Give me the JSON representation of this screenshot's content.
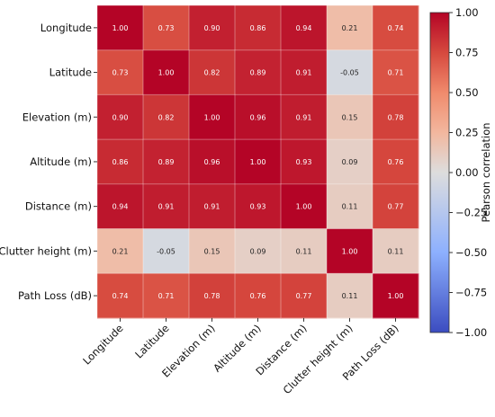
{
  "chart_data": {
    "type": "heatmap",
    "title": "",
    "row_labels": [
      "Longitude",
      "Latitude",
      "Elevation (m)",
      "Altitude (m)",
      "Distance (m)",
      "Clutter height (m)",
      "Path Loss (dB)"
    ],
    "col_labels": [
      "Longitude",
      "Latitude",
      "Elevation (m)",
      "Altitude (m)",
      "Distance (m)",
      "Clutter height (m)",
      "Path Loss (dB)"
    ],
    "values": [
      [
        1.0,
        0.73,
        0.9,
        0.86,
        0.94,
        0.21,
        0.74
      ],
      [
        0.73,
        1.0,
        0.82,
        0.89,
        0.91,
        -0.05,
        0.71
      ],
      [
        0.9,
        0.82,
        1.0,
        0.96,
        0.91,
        0.15,
        0.78
      ],
      [
        0.86,
        0.89,
        0.96,
        1.0,
        0.93,
        0.09,
        0.76
      ],
      [
        0.94,
        0.91,
        0.91,
        0.93,
        1.0,
        0.11,
        0.77
      ],
      [
        0.21,
        -0.05,
        0.15,
        0.09,
        0.11,
        1.0,
        0.11
      ],
      [
        0.74,
        0.71,
        0.78,
        0.76,
        0.77,
        0.11,
        1.0
      ]
    ],
    "value_labels": [
      [
        "1.00",
        "0.73",
        "0.90",
        "0.86",
        "0.94",
        "0.21",
        "0.74"
      ],
      [
        "0.73",
        "1.00",
        "0.82",
        "0.89",
        "0.91",
        "-0.05",
        "0.71"
      ],
      [
        "0.90",
        "0.82",
        "1.00",
        "0.96",
        "0.91",
        "0.15",
        "0.78"
      ],
      [
        "0.86",
        "0.89",
        "0.96",
        "1.00",
        "0.93",
        "0.09",
        "0.76"
      ],
      [
        "0.94",
        "0.91",
        "0.91",
        "0.93",
        "1.00",
        "0.11",
        "0.77"
      ],
      [
        "0.21",
        "-0.05",
        "0.15",
        "0.09",
        "0.11",
        "1.00",
        "0.11"
      ],
      [
        "0.74",
        "0.71",
        "0.78",
        "0.76",
        "0.77",
        "0.11",
        "1.00"
      ]
    ],
    "colorbar": {
      "label": "Pearson correlation",
      "range": [
        -1.0,
        1.0
      ],
      "ticks": [
        "1.00",
        "0.75",
        "0.50",
        "0.25",
        "0.00",
        "−0.25",
        "−0.50",
        "−0.75",
        "−1.00"
      ],
      "tick_values": [
        1.0,
        0.75,
        0.5,
        0.25,
        0.0,
        -0.25,
        -0.5,
        -0.75,
        -1.0
      ],
      "colormap": "coolwarm"
    },
    "grid": true,
    "colors": {
      "low": "#3b4cc0",
      "mid": "#dddddd",
      "high": "#b40426"
    }
  }
}
